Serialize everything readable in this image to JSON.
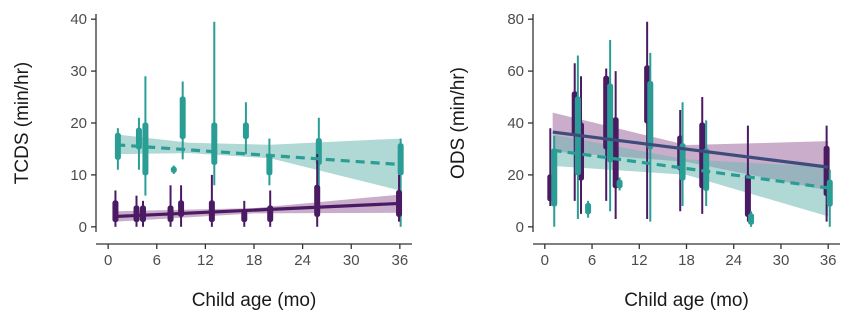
{
  "colors": {
    "purple": "#4a1a63",
    "teal": "#2a9d95",
    "teal_band": "#6fb8b2",
    "purple_band": "#9c6a9e",
    "navy": "#3d4c7a"
  },
  "chart_data": [
    {
      "type": "scatter",
      "title": "",
      "xlabel": "Child age (mo)",
      "ylabel": "TCDS (min/hr)",
      "xlim": [
        -1.5,
        37.5
      ],
      "ylim": [
        -1,
        41
      ],
      "xticks": [
        0,
        6,
        12,
        18,
        24,
        30,
        36
      ],
      "yticks": [
        0,
        10,
        20,
        30,
        40
      ],
      "grid": false,
      "legend": "none",
      "series": [
        {
          "color": "teal",
          "style": "dashed",
          "fit": {
            "x": [
              1,
              36
            ],
            "y": [
              15.8,
              12.0
            ]
          },
          "band": {
            "x": [
              1,
              10,
              20,
              36
            ],
            "lo": [
              14.0,
              14.2,
              13.2,
              7.0
            ],
            "hi": [
              17.8,
              16.2,
              15.8,
              17.0
            ]
          },
          "ranges": [
            {
              "x": 1.2,
              "min": 11,
              "max": 19,
              "q1": 13,
              "q3": 18
            },
            {
              "x": 3.8,
              "min": 11,
              "max": 21,
              "q1": 15,
              "q3": 19
            },
            {
              "x": 4.6,
              "min": 6,
              "max": 29,
              "q1": 10,
              "q3": 20
            },
            {
              "x": 8.1,
              "min": 10.2,
              "max": 11.8,
              "q1": 10.5,
              "q3": 11.5
            },
            {
              "x": 9.2,
              "min": 13,
              "max": 28,
              "q1": 17,
              "q3": 25
            },
            {
              "x": 13.1,
              "min": 8,
              "max": 39.5,
              "q1": 12,
              "q3": 20
            },
            {
              "x": 17.0,
              "min": 14,
              "max": 24,
              "q1": 17,
              "q3": 20
            },
            {
              "x": 19.9,
              "min": 8,
              "max": 17,
              "q1": 10,
              "q3": 14
            },
            {
              "x": 26.0,
              "min": 8,
              "max": 21,
              "q1": 12,
              "q3": 17
            },
            {
              "x": 36.1,
              "min": 0,
              "max": 17,
              "q1": 10,
              "q3": 16
            }
          ]
        },
        {
          "color": "purple",
          "style": "solid",
          "fit": {
            "x": [
              1,
              36
            ],
            "y": [
              2.0,
              4.5
            ]
          },
          "band": {
            "x": [
              1,
              18,
              36
            ],
            "lo": [
              1.0,
              2.6,
              2.7
            ],
            "hi": [
              3.0,
              3.6,
              6.2
            ]
          },
          "ranges": [
            {
              "x": 0.9,
              "min": 0,
              "max": 7,
              "q1": 1,
              "q3": 5
            },
            {
              "x": 3.5,
              "min": 0,
              "max": 6,
              "q1": 1,
              "q3": 4
            },
            {
              "x": 4.3,
              "min": 0,
              "max": 5,
              "q1": 1,
              "q3": 4
            },
            {
              "x": 7.7,
              "min": 0,
              "max": 8,
              "q1": 1,
              "q3": 4
            },
            {
              "x": 9.0,
              "min": 0,
              "max": 8,
              "q1": 2,
              "q3": 5
            },
            {
              "x": 12.8,
              "min": 0,
              "max": 10,
              "q1": 1,
              "q3": 5
            },
            {
              "x": 16.8,
              "min": 0,
              "max": 5,
              "q1": 1,
              "q3": 3
            },
            {
              "x": 20.0,
              "min": 0,
              "max": 7,
              "q1": 1,
              "q3": 4
            },
            {
              "x": 25.8,
              "min": 0,
              "max": 14,
              "q1": 2,
              "q3": 8
            },
            {
              "x": 35.9,
              "min": 1,
              "max": 10,
              "q1": 2,
              "q3": 7
            }
          ]
        }
      ]
    },
    {
      "type": "scatter",
      "title": "",
      "xlabel": "Child age (mo)",
      "ylabel": "ODS (min/hr)",
      "xlim": [
        -1.5,
        37.5
      ],
      "ylim": [
        -2,
        82
      ],
      "xticks": [
        0,
        6,
        12,
        18,
        24,
        30,
        36
      ],
      "yticks": [
        0,
        20,
        40,
        60,
        80
      ],
      "grid": false,
      "legend": "none",
      "series": [
        {
          "color": "purple",
          "style": "solid",
          "fit": {
            "x": [
              1,
              36
            ],
            "y": [
              36.5,
              23.0
            ]
          },
          "band": {
            "x": [
              1,
              18,
              36
            ],
            "lo": [
              29.0,
              25.0,
              14.0
            ],
            "hi": [
              44.0,
              31.5,
              33.0
            ]
          },
          "ranges": [
            {
              "x": 0.7,
              "min": 8,
              "max": 38,
              "q1": 10,
              "q3": 20
            },
            {
              "x": 3.8,
              "min": 10,
              "max": 63,
              "q1": 35,
              "q3": 52
            },
            {
              "x": 4.6,
              "min": 5,
              "max": 58,
              "q1": 18,
              "q3": 40
            },
            {
              "x": 7.8,
              "min": 10,
              "max": 61,
              "q1": 30,
              "q3": 58
            },
            {
              "x": 9.0,
              "min": 3,
              "max": 60,
              "q1": 15,
              "q3": 42
            },
            {
              "x": 13.0,
              "min": 3,
              "max": 79,
              "q1": 40,
              "q3": 62
            },
            {
              "x": 17.2,
              "min": 6,
              "max": 45,
              "q1": 22,
              "q3": 35
            },
            {
              "x": 20.0,
              "min": 5,
              "max": 50,
              "q1": 15,
              "q3": 40
            },
            {
              "x": 25.8,
              "min": 2,
              "max": 39,
              "q1": 4,
              "q3": 20
            },
            {
              "x": 35.8,
              "min": 2,
              "max": 39,
              "q1": 12,
              "q3": 31
            }
          ]
        },
        {
          "color": "teal",
          "style": "dashed",
          "fit": {
            "x": [
              1,
              36
            ],
            "y": [
              29.5,
              15.0
            ]
          },
          "band": {
            "x": [
              1,
              18,
              36
            ],
            "lo": [
              23.5,
              20.0,
              4.0
            ],
            "hi": [
              35.5,
              26.0,
              23.0
            ]
          },
          "ranges": [
            {
              "x": 1.2,
              "min": 0,
              "max": 35,
              "q1": 8,
              "q3": 30
            },
            {
              "x": 4.2,
              "min": 3,
              "max": 66,
              "q1": 20,
              "q3": 50
            },
            {
              "x": 5.5,
              "min": 3.5,
              "max": 10,
              "q1": 5,
              "q3": 9
            },
            {
              "x": 8.3,
              "min": 6,
              "max": 72,
              "q1": 25,
              "q3": 55
            },
            {
              "x": 9.5,
              "min": 14,
              "max": 19,
              "q1": 15,
              "q3": 18
            },
            {
              "x": 13.4,
              "min": 2,
              "max": 67,
              "q1": 30,
              "q3": 56
            },
            {
              "x": 17.5,
              "min": 8,
              "max": 48,
              "q1": 18,
              "q3": 32
            },
            {
              "x": 20.5,
              "min": 8,
              "max": 41,
              "q1": 14,
              "q3": 30
            },
            {
              "x": 26.2,
              "min": 0,
              "max": 6,
              "q1": 1,
              "q3": 5
            },
            {
              "x": 36.2,
              "min": 0,
              "max": 22,
              "q1": 8,
              "q3": 18
            }
          ]
        }
      ]
    }
  ]
}
